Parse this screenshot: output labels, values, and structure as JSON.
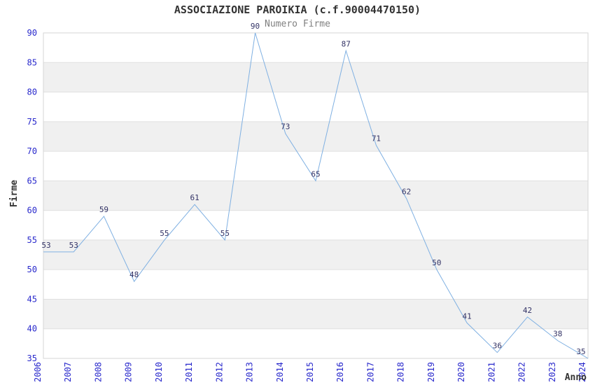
{
  "title": "ASSOCIAZIONE PAROIKIA (c.f.90004470150)",
  "subtitle": "Numero Firme",
  "chart_data": {
    "type": "line",
    "title": "ASSOCIAZIONE PAROIKIA (c.f.90004470150)",
    "subtitle": "Numero Firme",
    "xlabel": "Anno",
    "ylabel": "Firme",
    "categories": [
      "2006",
      "2007",
      "2008",
      "2009",
      "2010",
      "2011",
      "2012",
      "2013",
      "2014",
      "2015",
      "2016",
      "2017",
      "2018",
      "2019",
      "2020",
      "2021",
      "2022",
      "2023",
      "2024"
    ],
    "series": [
      {
        "name": "Numero Firme",
        "values": [
          53,
          53,
          59,
          48,
          55,
          61,
          55,
          90,
          73,
          65,
          87,
          71,
          62,
          50,
          41,
          36,
          42,
          38,
          35
        ]
      }
    ],
    "ylim": [
      35,
      90
    ],
    "ytick_step": 5,
    "grid": true,
    "legend": "none",
    "band_fill": "alternating horizontal bands",
    "colors": {
      "line": "#7fb0e2",
      "tick_label": "#2929cc",
      "data_label": "#333366",
      "band": "#f0f0f0",
      "gridline": "#e0e0e0",
      "plot_border": "#d6d6d6",
      "title": "#333333",
      "subtitle": "#808080",
      "axis_title": "#333333",
      "background": "#ffffff"
    }
  }
}
